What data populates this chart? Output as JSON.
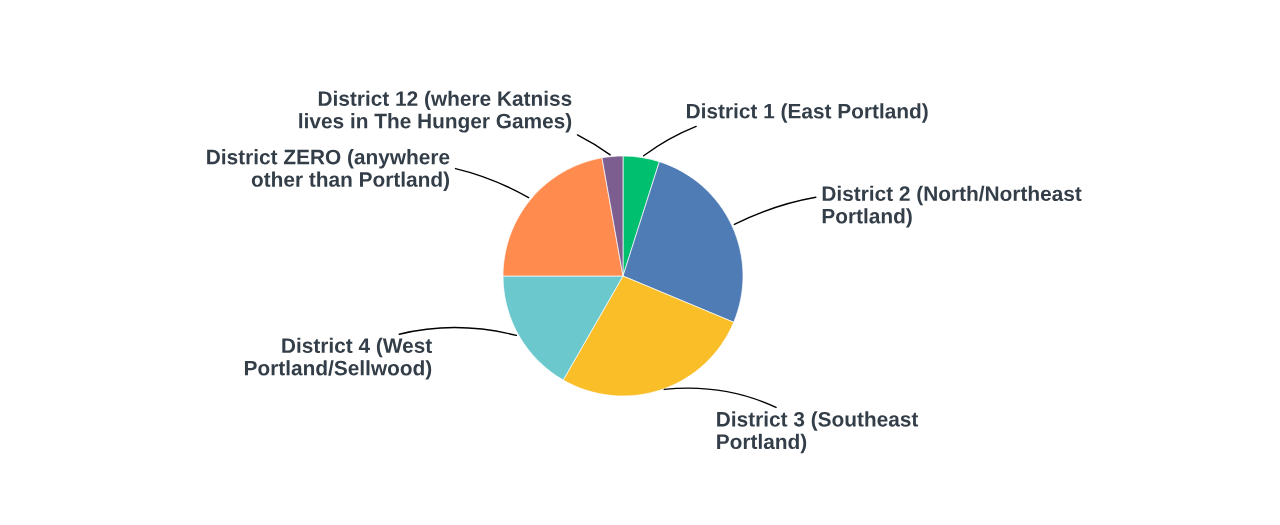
{
  "chart_data": {
    "type": "pie",
    "categories": [
      "District 1 (East Portland)",
      "District 2 (North/Northeast Portland)",
      "District 3 (Southeast Portland)",
      "District 4 (West Portland/Sellwood)",
      "District ZERO (anywhere other than Portland)",
      "District 12 (where Katniss lives in The Hunger Games)"
    ],
    "values": [
      4.9,
      26.4,
      27,
      16.7,
      22.2,
      2.8
    ],
    "colors": [
      "#00bf6f",
      "#507cb6",
      "#f9be28",
      "#6bc8cd",
      "#ff8b4f",
      "#7d5e90"
    ]
  }
}
